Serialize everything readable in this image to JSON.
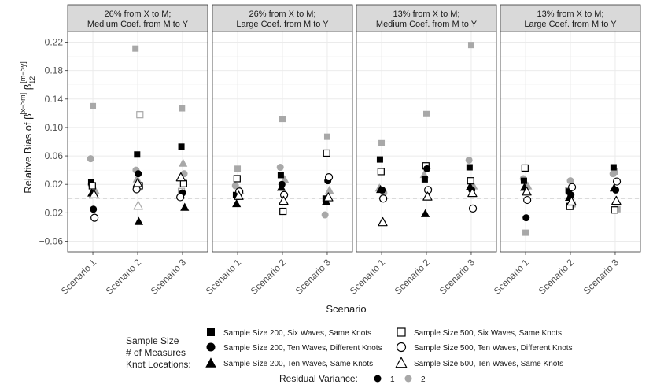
{
  "chart_data": {
    "type": "scatter",
    "xlabel": "Scenario",
    "ylabel_main": "Relative Bias of ",
    "ylabel_beta1": "β",
    "ylabel_sup1": "[x−>m]",
    "ylabel_sub1": "i",
    "ylabel_beta2": "β",
    "ylabel_sup2": "[m−>y]",
    "ylabel_sub2": "12",
    "ylim": [
      -0.075,
      0.235
    ],
    "yticks": [
      -0.06,
      -0.02,
      0.02,
      0.06,
      0.1,
      0.14,
      0.18,
      0.22
    ],
    "ytick_labels": [
      "−0.06",
      "−0.02",
      "0.02",
      "0.06",
      "0.10",
      "0.14",
      "0.18",
      "0.22"
    ],
    "reference_line": 0,
    "categories": [
      "Scenario 1",
      "Scenario 2",
      "Scenario 3"
    ],
    "colors": {
      "rv1": "#000000",
      "rv2": "#a8a8a8",
      "strip_bg": "#d9d9d9",
      "grid": "#ebebeb",
      "ref": "#d6d6d6"
    },
    "panels": [
      {
        "title_line1": "26% from X to M;",
        "title_line2": "Medium Coef. from M to Y",
        "points": [
          {
            "x": 1,
            "y": 0.023,
            "shape": "square",
            "filled": true,
            "rv": 1
          },
          {
            "x": 1,
            "y": 0.018,
            "shape": "square",
            "filled": false,
            "rv": 1
          },
          {
            "x": 1,
            "y": -0.015,
            "shape": "circle",
            "filled": true,
            "rv": 1
          },
          {
            "x": 1,
            "y": -0.027,
            "shape": "circle",
            "filled": false,
            "rv": 1
          },
          {
            "x": 1,
            "y": 0.008,
            "shape": "triangle",
            "filled": true,
            "rv": 1
          },
          {
            "x": 1,
            "y": 0.006,
            "shape": "triangle",
            "filled": false,
            "rv": 1
          },
          {
            "x": 1,
            "y": 0.13,
            "shape": "square",
            "filled": true,
            "rv": 2
          },
          {
            "x": 1,
            "y": 0.056,
            "shape": "circle",
            "filled": true,
            "rv": 2
          },
          {
            "x": 1,
            "y": 0.012,
            "shape": "triangle",
            "filled": true,
            "rv": 2
          },
          {
            "x": 1,
            "y": 0.02,
            "shape": "circle",
            "filled": true,
            "rv": 2
          },
          {
            "x": 2,
            "y": 0.062,
            "shape": "square",
            "filled": true,
            "rv": 1
          },
          {
            "x": 2,
            "y": 0.035,
            "shape": "circle",
            "filled": true,
            "rv": 1
          },
          {
            "x": 2,
            "y": 0.018,
            "shape": "square",
            "filled": false,
            "rv": 1
          },
          {
            "x": 2,
            "y": 0.013,
            "shape": "circle",
            "filled": false,
            "rv": 1
          },
          {
            "x": 2,
            "y": -0.032,
            "shape": "triangle",
            "filled": true,
            "rv": 1
          },
          {
            "x": 2,
            "y": 0.022,
            "shape": "triangle",
            "filled": false,
            "rv": 1
          },
          {
            "x": 2,
            "y": 0.211,
            "shape": "square",
            "filled": true,
            "rv": 2
          },
          {
            "x": 2,
            "y": 0.118,
            "shape": "square",
            "filled": false,
            "rv": 2
          },
          {
            "x": 2,
            "y": 0.04,
            "shape": "circle",
            "filled": true,
            "rv": 2
          },
          {
            "x": 2,
            "y": 0.028,
            "shape": "triangle",
            "filled": true,
            "rv": 2
          },
          {
            "x": 2,
            "y": -0.01,
            "shape": "triangle",
            "filled": false,
            "rv": 2
          },
          {
            "x": 2,
            "y": 0.016,
            "shape": "circle",
            "filled": false,
            "rv": 2
          },
          {
            "x": 3,
            "y": 0.073,
            "shape": "square",
            "filled": true,
            "rv": 1
          },
          {
            "x": 3,
            "y": 0.021,
            "shape": "square",
            "filled": false,
            "rv": 1
          },
          {
            "x": 3,
            "y": 0.008,
            "shape": "circle",
            "filled": true,
            "rv": 1
          },
          {
            "x": 3,
            "y": 0.002,
            "shape": "circle",
            "filled": false,
            "rv": 1
          },
          {
            "x": 3,
            "y": -0.012,
            "shape": "triangle",
            "filled": true,
            "rv": 1
          },
          {
            "x": 3,
            "y": 0.03,
            "shape": "triangle",
            "filled": false,
            "rv": 1
          },
          {
            "x": 3,
            "y": 0.127,
            "shape": "square",
            "filled": true,
            "rv": 2
          },
          {
            "x": 3,
            "y": 0.05,
            "shape": "triangle",
            "filled": true,
            "rv": 2
          },
          {
            "x": 3,
            "y": 0.035,
            "shape": "circle",
            "filled": true,
            "rv": 2
          },
          {
            "x": 3,
            "y": 0.01,
            "shape": "square",
            "filled": false,
            "rv": 2
          }
        ]
      },
      {
        "title_line1": "26% from X to M;",
        "title_line2": "Large Coef. from M to Y",
        "points": [
          {
            "x": 1,
            "y": 0.005,
            "shape": "square",
            "filled": true,
            "rv": 1
          },
          {
            "x": 1,
            "y": 0.028,
            "shape": "square",
            "filled": false,
            "rv": 1
          },
          {
            "x": 1,
            "y": 0.003,
            "shape": "circle",
            "filled": true,
            "rv": 1
          },
          {
            "x": 1,
            "y": 0.01,
            "shape": "circle",
            "filled": false,
            "rv": 1
          },
          {
            "x": 1,
            "y": -0.007,
            "shape": "triangle",
            "filled": true,
            "rv": 1
          },
          {
            "x": 1,
            "y": 0.004,
            "shape": "triangle",
            "filled": false,
            "rv": 1
          },
          {
            "x": 1,
            "y": 0.042,
            "shape": "square",
            "filled": true,
            "rv": 2
          },
          {
            "x": 1,
            "y": 0.018,
            "shape": "circle",
            "filled": true,
            "rv": 2
          },
          {
            "x": 1,
            "y": 0.012,
            "shape": "triangle",
            "filled": true,
            "rv": 2
          },
          {
            "x": 2,
            "y": 0.033,
            "shape": "square",
            "filled": true,
            "rv": 1
          },
          {
            "x": 2,
            "y": 0.02,
            "shape": "circle",
            "filled": true,
            "rv": 1
          },
          {
            "x": 2,
            "y": -0.018,
            "shape": "square",
            "filled": false,
            "rv": 1
          },
          {
            "x": 2,
            "y": 0.005,
            "shape": "circle",
            "filled": false,
            "rv": 1
          },
          {
            "x": 2,
            "y": 0.016,
            "shape": "triangle",
            "filled": true,
            "rv": 1
          },
          {
            "x": 2,
            "y": -0.003,
            "shape": "triangle",
            "filled": false,
            "rv": 1
          },
          {
            "x": 2,
            "y": 0.112,
            "shape": "square",
            "filled": true,
            "rv": 2
          },
          {
            "x": 2,
            "y": 0.044,
            "shape": "circle",
            "filled": true,
            "rv": 2
          },
          {
            "x": 2,
            "y": 0.027,
            "shape": "triangle",
            "filled": true,
            "rv": 2
          },
          {
            "x": 3,
            "y": 0.0,
            "shape": "square",
            "filled": true,
            "rv": 1
          },
          {
            "x": 3,
            "y": 0.064,
            "shape": "square",
            "filled": false,
            "rv": 1
          },
          {
            "x": 3,
            "y": 0.025,
            "shape": "circle",
            "filled": true,
            "rv": 1
          },
          {
            "x": 3,
            "y": 0.03,
            "shape": "circle",
            "filled": false,
            "rv": 1
          },
          {
            "x": 3,
            "y": -0.004,
            "shape": "triangle",
            "filled": true,
            "rv": 1
          },
          {
            "x": 3,
            "y": 0.002,
            "shape": "triangle",
            "filled": false,
            "rv": 1
          },
          {
            "x": 3,
            "y": 0.087,
            "shape": "square",
            "filled": true,
            "rv": 2
          },
          {
            "x": 3,
            "y": -0.023,
            "shape": "circle",
            "filled": true,
            "rv": 2
          },
          {
            "x": 3,
            "y": 0.012,
            "shape": "triangle",
            "filled": true,
            "rv": 2
          }
        ]
      },
      {
        "title_line1": "13% from X to M;",
        "title_line2": "Medium Coef. from M to Y",
        "points": [
          {
            "x": 1,
            "y": 0.055,
            "shape": "square",
            "filled": true,
            "rv": 1
          },
          {
            "x": 1,
            "y": 0.038,
            "shape": "square",
            "filled": false,
            "rv": 1
          },
          {
            "x": 1,
            "y": 0.012,
            "shape": "circle",
            "filled": true,
            "rv": 1
          },
          {
            "x": 1,
            "y": 0.0,
            "shape": "circle",
            "filled": false,
            "rv": 1
          },
          {
            "x": 1,
            "y": 0.013,
            "shape": "triangle",
            "filled": true,
            "rv": 1
          },
          {
            "x": 1,
            "y": -0.033,
            "shape": "triangle",
            "filled": false,
            "rv": 1
          },
          {
            "x": 1,
            "y": 0.078,
            "shape": "square",
            "filled": true,
            "rv": 2
          },
          {
            "x": 1,
            "y": 0.015,
            "shape": "triangle",
            "filled": true,
            "rv": 2
          },
          {
            "x": 1,
            "y": 0.008,
            "shape": "circle",
            "filled": true,
            "rv": 2
          },
          {
            "x": 2,
            "y": 0.027,
            "shape": "square",
            "filled": true,
            "rv": 1
          },
          {
            "x": 2,
            "y": 0.046,
            "shape": "square",
            "filled": false,
            "rv": 1
          },
          {
            "x": 2,
            "y": 0.042,
            "shape": "circle",
            "filled": true,
            "rv": 1
          },
          {
            "x": 2,
            "y": 0.012,
            "shape": "circle",
            "filled": false,
            "rv": 1
          },
          {
            "x": 2,
            "y": -0.021,
            "shape": "triangle",
            "filled": true,
            "rv": 1
          },
          {
            "x": 2,
            "y": 0.003,
            "shape": "triangle",
            "filled": false,
            "rv": 1
          },
          {
            "x": 2,
            "y": 0.119,
            "shape": "square",
            "filled": true,
            "rv": 2
          },
          {
            "x": 2,
            "y": 0.034,
            "shape": "triangle",
            "filled": true,
            "rv": 2
          },
          {
            "x": 2,
            "y": 0.013,
            "shape": "circle",
            "filled": true,
            "rv": 2
          },
          {
            "x": 3,
            "y": 0.044,
            "shape": "square",
            "filled": true,
            "rv": 1
          },
          {
            "x": 3,
            "y": 0.025,
            "shape": "square",
            "filled": false,
            "rv": 1
          },
          {
            "x": 3,
            "y": 0.012,
            "shape": "circle",
            "filled": true,
            "rv": 1
          },
          {
            "x": 3,
            "y": -0.014,
            "shape": "circle",
            "filled": false,
            "rv": 1
          },
          {
            "x": 3,
            "y": 0.017,
            "shape": "triangle",
            "filled": true,
            "rv": 1
          },
          {
            "x": 3,
            "y": 0.008,
            "shape": "triangle",
            "filled": false,
            "rv": 1
          },
          {
            "x": 3,
            "y": 0.216,
            "shape": "square",
            "filled": true,
            "rv": 2
          },
          {
            "x": 3,
            "y": 0.054,
            "shape": "circle",
            "filled": true,
            "rv": 2
          },
          {
            "x": 3,
            "y": 0.018,
            "shape": "triangle",
            "filled": true,
            "rv": 2
          }
        ]
      },
      {
        "title_line1": "13% from X to M;",
        "title_line2": "Large Coef. from M to Y",
        "points": [
          {
            "x": 1,
            "y": 0.025,
            "shape": "square",
            "filled": true,
            "rv": 1
          },
          {
            "x": 1,
            "y": 0.043,
            "shape": "square",
            "filled": false,
            "rv": 1
          },
          {
            "x": 1,
            "y": -0.027,
            "shape": "circle",
            "filled": true,
            "rv": 1
          },
          {
            "x": 1,
            "y": -0.002,
            "shape": "circle",
            "filled": false,
            "rv": 1
          },
          {
            "x": 1,
            "y": 0.016,
            "shape": "triangle",
            "filled": true,
            "rv": 1
          },
          {
            "x": 1,
            "y": 0.01,
            "shape": "triangle",
            "filled": false,
            "rv": 1
          },
          {
            "x": 1,
            "y": -0.048,
            "shape": "square",
            "filled": true,
            "rv": 2
          },
          {
            "x": 1,
            "y": 0.028,
            "shape": "circle",
            "filled": true,
            "rv": 2
          },
          {
            "x": 1,
            "y": 0.018,
            "shape": "triangle",
            "filled": true,
            "rv": 2
          },
          {
            "x": 2,
            "y": 0.01,
            "shape": "square",
            "filled": true,
            "rv": 1
          },
          {
            "x": 2,
            "y": -0.011,
            "shape": "square",
            "filled": false,
            "rv": 1
          },
          {
            "x": 2,
            "y": 0.005,
            "shape": "circle",
            "filled": true,
            "rv": 1
          },
          {
            "x": 2,
            "y": 0.016,
            "shape": "circle",
            "filled": false,
            "rv": 1
          },
          {
            "x": 2,
            "y": 0.002,
            "shape": "triangle",
            "filled": true,
            "rv": 1
          },
          {
            "x": 2,
            "y": -0.004,
            "shape": "triangle",
            "filled": false,
            "rv": 1
          },
          {
            "x": 2,
            "y": 0.025,
            "shape": "circle",
            "filled": true,
            "rv": 2
          },
          {
            "x": 2,
            "y": 0.012,
            "shape": "square",
            "filled": true,
            "rv": 2
          },
          {
            "x": 2,
            "y": -0.008,
            "shape": "square",
            "filled": true,
            "rv": 2
          },
          {
            "x": 3,
            "y": 0.044,
            "shape": "square",
            "filled": true,
            "rv": 1
          },
          {
            "x": 3,
            "y": -0.016,
            "shape": "square",
            "filled": false,
            "rv": 1
          },
          {
            "x": 3,
            "y": 0.012,
            "shape": "circle",
            "filled": true,
            "rv": 1
          },
          {
            "x": 3,
            "y": 0.024,
            "shape": "circle",
            "filled": false,
            "rv": 1
          },
          {
            "x": 3,
            "y": 0.015,
            "shape": "triangle",
            "filled": true,
            "rv": 1
          },
          {
            "x": 3,
            "y": -0.003,
            "shape": "triangle",
            "filled": false,
            "rv": 1
          },
          {
            "x": 3,
            "y": 0.038,
            "shape": "square",
            "filled": true,
            "rv": 2
          },
          {
            "x": 3,
            "y": 0.035,
            "shape": "circle",
            "filled": true,
            "rv": 2
          },
          {
            "x": 3,
            "y": -0.015,
            "shape": "square",
            "filled": true,
            "rv": 2
          }
        ]
      }
    ],
    "legend": {
      "title_lines": [
        "Sample Size",
        "# of Measures",
        "Knot Locations:"
      ],
      "items": [
        {
          "shape": "square",
          "filled": true,
          "label": "Sample Size 200, Six Waves, Same Knots"
        },
        {
          "shape": "circle",
          "filled": true,
          "label": "Sample Size 200, Ten Waves, Different Knots"
        },
        {
          "shape": "triangle",
          "filled": true,
          "label": "Sample Size 200, Ten Waves, Same Knots"
        },
        {
          "shape": "square",
          "filled": false,
          "label": "Sample Size 500, Six Waves, Same Knots"
        },
        {
          "shape": "circle",
          "filled": false,
          "label": "Sample Size 500, Ten Waves, Different Knots"
        },
        {
          "shape": "triangle",
          "filled": false,
          "label": "Sample Size 500, Ten Waves, Same Knots"
        }
      ],
      "rv_title": "Residual Variance:",
      "rv_items": [
        {
          "rv": 1,
          "label": "1"
        },
        {
          "rv": 2,
          "label": "2"
        }
      ]
    }
  }
}
